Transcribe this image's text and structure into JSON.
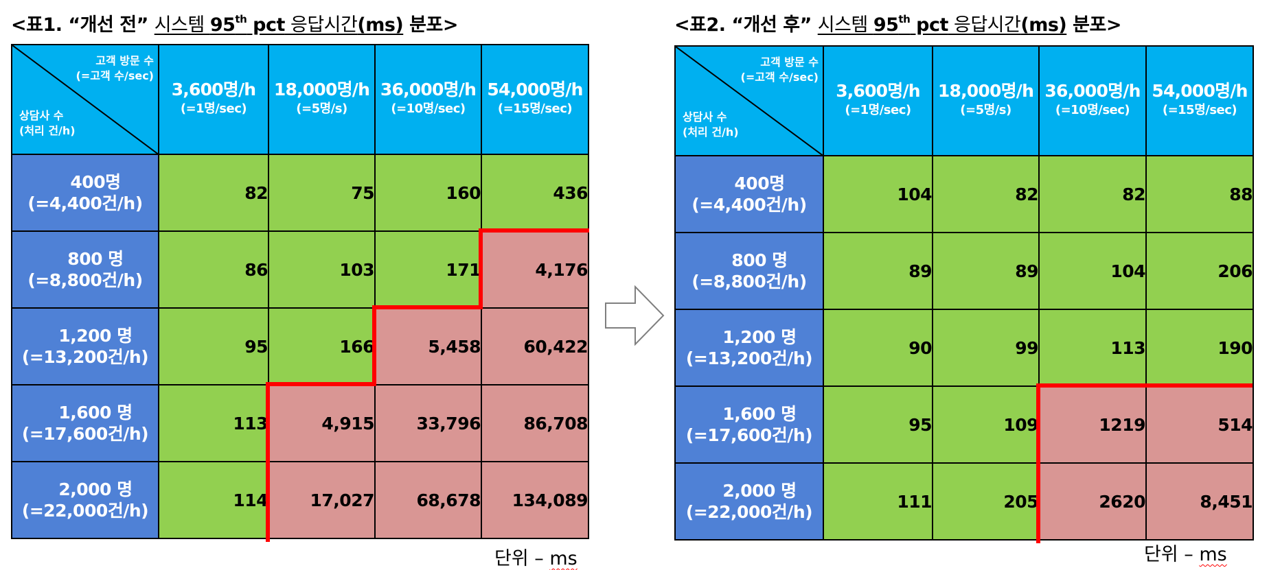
{
  "table1": {
    "title": {
      "prefix": "<표1. “개선 전” ",
      "u_before": "시스템 ",
      "u_pct_num": "95",
      "u_pct_sup": "th",
      "u_pct_rest": " pct",
      "u_middle": " 응답시간",
      "u_ms": "(ms)",
      "suffix": "  분포>"
    },
    "corner": {
      "top_right_1": "고객 방문 수",
      "top_right_2": "(=고객 수/sec)",
      "bottom_left_1": "상담사  수",
      "bottom_left_2": "(처리 건/h)"
    },
    "columns": [
      {
        "main": "3,600명/h",
        "sub": "(=1명/sec)"
      },
      {
        "main": "18,000명/h",
        "sub": "(=5명/s)"
      },
      {
        "main": "36,000명/h",
        "sub": "(=10명/sec)"
      },
      {
        "main": "54,000명/h",
        "sub": "(=15명/sec)"
      }
    ],
    "rows": [
      {
        "main": "400명",
        "sub": "(=4,400건/h)",
        "values": [
          "82",
          "75",
          "160",
          "436"
        ]
      },
      {
        "main": "800 명",
        "sub": "(=8,800건/h)",
        "values": [
          "86",
          "103",
          "171",
          "4,176"
        ]
      },
      {
        "main": "1,200 명",
        "sub": "(=13,200건/h)",
        "values": [
          "95",
          "166",
          "5,458",
          "60,422"
        ]
      },
      {
        "main": "1,600 명",
        "sub": "(=17,600건/h)",
        "values": [
          "113",
          "4,915",
          "33,796",
          "86,708"
        ]
      },
      {
        "main": "2,000 명",
        "sub": "(=22,000건/h)",
        "values": [
          "114",
          "17,027",
          "68,678",
          "134,089"
        ]
      }
    ],
    "unit_prefix": "단위 – ",
    "unit_ms": "ms"
  },
  "table2": {
    "title": {
      "prefix": "<표2. “개선 후” ",
      "u_before": "시스템 ",
      "u_pct_num": "95",
      "u_pct_sup": "th",
      "u_pct_rest": " pct",
      "u_middle": " 응답시간",
      "u_ms": "(ms)",
      "suffix": "  분포>"
    },
    "corner": {
      "top_right_1": "고객 방문 수",
      "top_right_2": "(=고객 수/sec)",
      "bottom_left_1": "상담사  수",
      "bottom_left_2": "(처리 건/h)"
    },
    "columns": [
      {
        "main": "3,600명/h",
        "sub": "(=1명/sec)"
      },
      {
        "main": "18,000명/h",
        "sub": "(=5명/s)"
      },
      {
        "main": "36,000명/h",
        "sub": "(=10명/sec)"
      },
      {
        "main": "54,000명/h",
        "sub": "(=15명/sec)"
      }
    ],
    "rows": [
      {
        "main": "400명",
        "sub": "(=4,400건/h)",
        "values": [
          "104",
          "82",
          "82",
          "88"
        ]
      },
      {
        "main": "800 명",
        "sub": "(=8,800건/h)",
        "values": [
          "89",
          "89",
          "104",
          "206"
        ]
      },
      {
        "main": "1,200 명",
        "sub": "(=13,200건/h)",
        "values": [
          "90",
          "99",
          "113",
          "190"
        ]
      },
      {
        "main": "1,600 명",
        "sub": "(=17,600건/h)",
        "values": [
          "95",
          "109",
          "1219",
          "514"
        ]
      },
      {
        "main": "2,000 명",
        "sub": "(=22,000건/h)",
        "values": [
          "111",
          "205",
          "2620",
          "8,451"
        ]
      }
    ],
    "unit_prefix": "단위 – ",
    "unit_ms": "ms"
  },
  "colors": {
    "header_blue": "#00b0f0",
    "row_header_blue": "#4f81d6",
    "ok_green": "#92d050",
    "slow_pink": "#d99694",
    "boundary_red": "#ff0000"
  },
  "icons": {
    "arrow": "right-arrow-outline-icon"
  }
}
